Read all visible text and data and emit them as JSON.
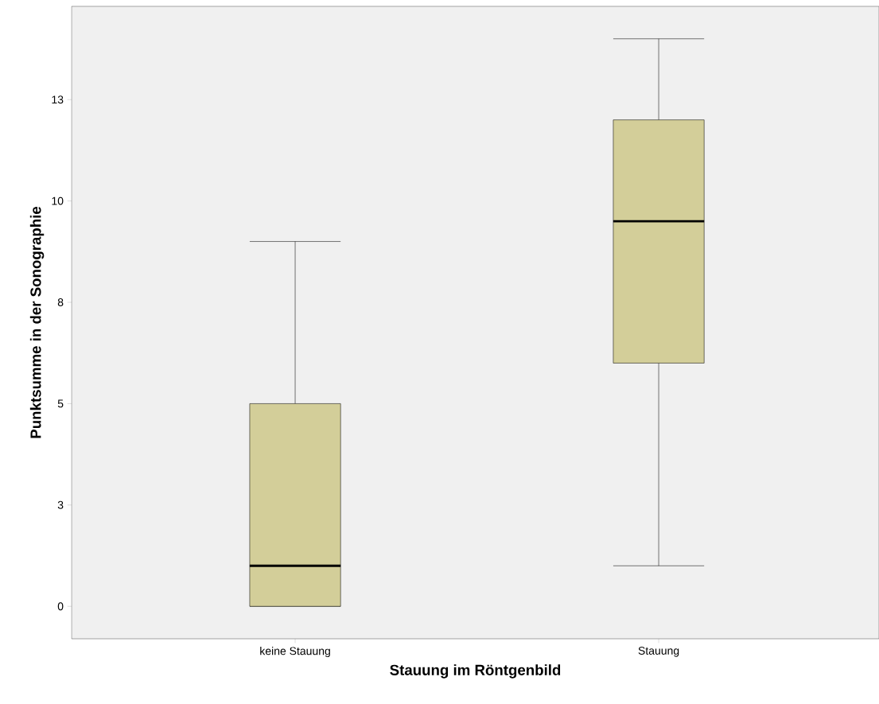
{
  "chart_data": {
    "type": "box",
    "xlabel": "Stauung im Röntgenbild",
    "ylabel": "Punktsumme in der Sonographie",
    "categories": [
      "keine Stauung",
      "Stauung"
    ],
    "boxes": [
      {
        "low": 0,
        "q1": 0,
        "median": 1,
        "q3": 5,
        "high": 9
      },
      {
        "low": 1,
        "q1": 6,
        "median": 9.5,
        "q3": 12,
        "high": 14
      }
    ],
    "color": "#d3ce99",
    "ylim": [
      -0.8,
      14.8
    ],
    "yticks": [
      0,
      {
        "value": 2.5,
        "label": "3"
      },
      5,
      {
        "value": 7.5,
        "label": "8"
      },
      10,
      {
        "value": 12.5,
        "label": "13"
      }
    ],
    "grid": false
  }
}
